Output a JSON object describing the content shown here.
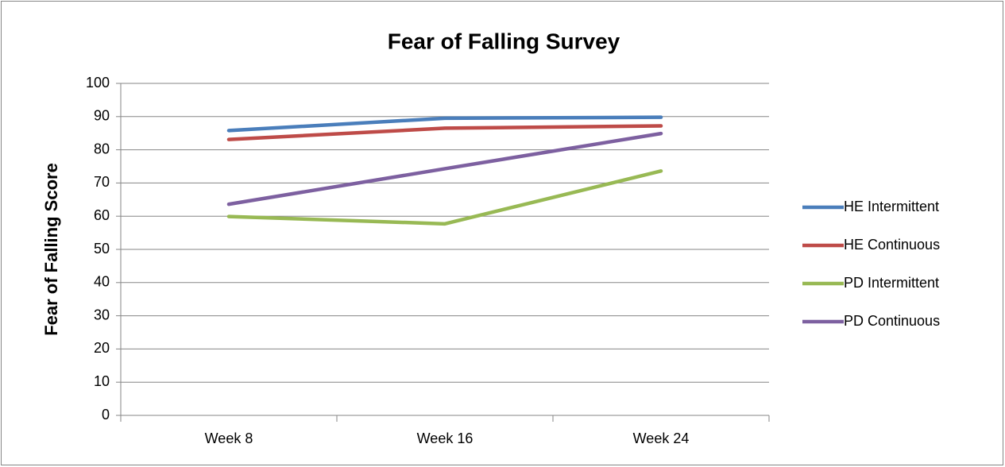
{
  "chart_data": {
    "type": "line",
    "title": "Fear of Falling Survey",
    "y_label": "Fear of Falling Score",
    "categories": [
      "Week 8",
      "Week 16",
      "Week 24"
    ],
    "series": [
      {
        "name": "HE Intermittent",
        "color": "#4a7ebb",
        "values": [
          85.8,
          89.5,
          89.8
        ]
      },
      {
        "name": "HE Continuous",
        "color": "#be4b48",
        "values": [
          83.1,
          86.5,
          87.2
        ]
      },
      {
        "name": "PD Intermittent",
        "color": "#98b954",
        "values": [
          59.9,
          57.7,
          73.6
        ]
      },
      {
        "name": "PD Continuous",
        "color": "#7d60a0",
        "values": [
          63.6,
          74.3,
          84.9
        ]
      }
    ],
    "ylim": [
      0,
      100
    ],
    "yticks": [
      0,
      10,
      20,
      30,
      40,
      50,
      60,
      70,
      80,
      90,
      100
    ],
    "grid": true,
    "legend": "right"
  }
}
